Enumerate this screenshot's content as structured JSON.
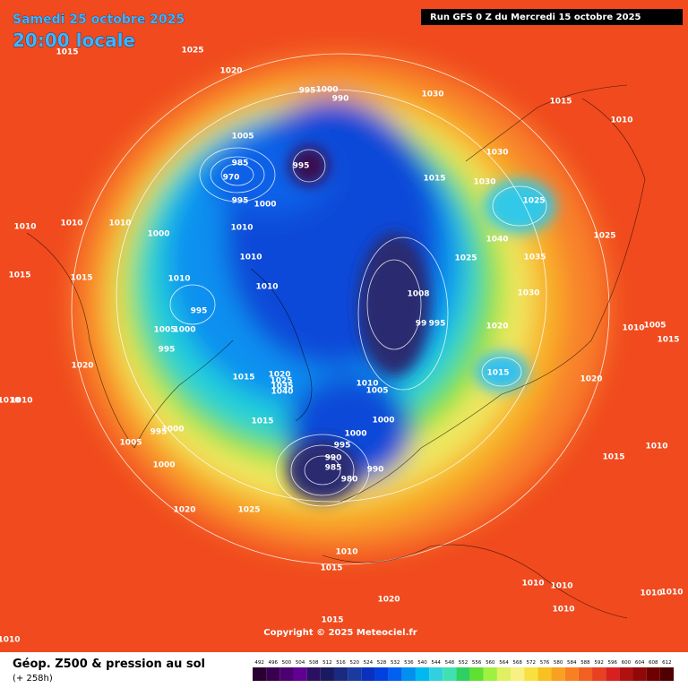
{
  "header": {
    "date": "Samedi 25 octobre 2025",
    "time": "20:00 locale",
    "run": "Run GFS 0 Z du Mercredi 15 octobre 2025"
  },
  "map": {
    "copyright": "Copyright © 2025 Meteociel.fr",
    "pressure_labels": [
      1015,
      1025,
      1020,
      995,
      1000,
      990,
      1030,
      1015,
      1010,
      1005,
      985,
      970,
      995,
      995,
      1000,
      1015,
      1030,
      1030,
      1025,
      1010,
      1010,
      1010,
      1000,
      1010,
      1040,
      1025,
      1025,
      1035,
      1015,
      1015,
      1010,
      1010,
      1010,
      1030,
      995,
      1008,
      99,
      995,
      1020,
      1010,
      1005,
      1015,
      1005,
      1000,
      995,
      1020,
      1015,
      1015,
      1020,
      1025,
      1035,
      1040,
      1010,
      1005,
      1020,
      1010,
      1010,
      1000,
      1015,
      995,
      1000,
      1000,
      1005,
      995,
      1010,
      990,
      985,
      980,
      990,
      1000,
      1015,
      1020,
      1025,
      1010,
      1015,
      1010,
      1010,
      1010,
      1010,
      1020,
      1010,
      1015,
      1010
    ]
  },
  "footer": {
    "title": "Géop. Z500 & pression au sol",
    "lead": "(+ 258h)"
  },
  "legend": {
    "ticks": [
      492,
      496,
      500,
      504,
      508,
      512,
      516,
      520,
      524,
      528,
      532,
      536,
      540,
      544,
      548,
      552,
      556,
      560,
      564,
      568,
      572,
      576,
      580,
      584,
      588,
      592,
      596,
      600,
      604,
      608,
      612
    ],
    "colors": [
      "#2a0030",
      "#3a0050",
      "#4a0070",
      "#600090",
      "#2a1060",
      "#1a1a60",
      "#1a2a80",
      "#1a3aa0",
      "#0a30c0",
      "#0040e0",
      "#0060f0",
      "#0090f0",
      "#00b8f0",
      "#30d0e0",
      "#40e0b0",
      "#30d060",
      "#60e030",
      "#a0f040",
      "#e0f060",
      "#f8f080",
      "#f8e040",
      "#f8c020",
      "#f8a020",
      "#f88020",
      "#f06020",
      "#e84020",
      "#d82020",
      "#b01010",
      "#900808",
      "#700000",
      "#500000"
    ]
  }
}
